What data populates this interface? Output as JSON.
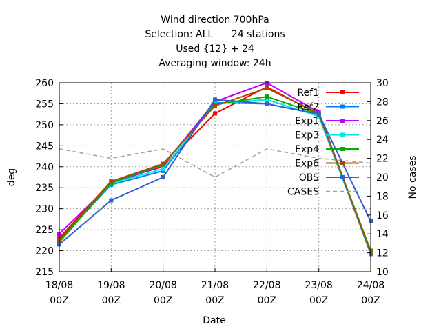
{
  "chart_data": {
    "type": "line",
    "title_lines": [
      "Wind direction 700hPa",
      "Selection: ALL      24 stations",
      "Used {12} + 24",
      "Averaging window: 24h"
    ],
    "xlabel": "Date",
    "ylabel": "deg",
    "y2label": "No cases",
    "ylim": [
      215,
      260
    ],
    "y2lim": [
      10,
      30
    ],
    "grid": true,
    "legend_position": "top-right",
    "x_ticks": [
      {
        "line1": "18/08",
        "line2": "00Z"
      },
      {
        "line1": "19/08",
        "line2": "00Z"
      },
      {
        "line1": "20/08",
        "line2": "00Z"
      },
      {
        "line1": "21/08",
        "line2": "00Z"
      },
      {
        "line1": "22/08",
        "line2": "00Z"
      },
      {
        "line1": "23/08",
        "line2": "00Z"
      },
      {
        "line1": "24/08",
        "line2": "00Z"
      }
    ],
    "y_ticks": [
      "215",
      "220",
      "225",
      "230",
      "235",
      "240",
      "245",
      "250",
      "255",
      "260"
    ],
    "y2_ticks": [
      "10",
      "12",
      "14",
      "16",
      "18",
      "20",
      "22",
      "24",
      "26",
      "28",
      "30"
    ],
    "series": [
      {
        "name": "Ref1",
        "color": "#ff0000",
        "values": [
          223.0,
          236.5,
          240.0,
          252.7,
          259.0,
          252.5,
          220.0
        ]
      },
      {
        "name": "Ref2",
        "color": "#0080ff",
        "values": [
          222.5,
          235.7,
          239.0,
          255.3,
          255.0,
          252.5,
          219.2
        ]
      },
      {
        "name": "Exp1",
        "color": "#c000ff",
        "values": [
          224.0,
          236.0,
          240.3,
          255.5,
          260.0,
          253.0,
          219.5
        ]
      },
      {
        "name": "Exp3",
        "color": "#00e8e8",
        "values": [
          222.5,
          236.0,
          239.5,
          255.0,
          256.0,
          252.0,
          219.5
        ]
      },
      {
        "name": "Exp4",
        "color": "#00b000",
        "values": [
          222.0,
          236.2,
          240.5,
          254.8,
          256.7,
          252.5,
          220.0
        ]
      },
      {
        "name": "Exp6",
        "color": "#a05000",
        "values": [
          222.5,
          236.5,
          240.7,
          254.5,
          258.7,
          252.7,
          219.5
        ]
      },
      {
        "name": "OBS",
        "color": "#3060d0",
        "values": [
          221.5,
          232.0,
          237.5,
          256.0,
          255.0,
          252.5,
          227.0
        ]
      }
    ],
    "cases_series": {
      "name": "CASES",
      "color": "#a0a0a0",
      "axis": "right",
      "values": [
        23,
        22,
        23,
        20,
        23,
        22,
        21.5
      ]
    }
  }
}
